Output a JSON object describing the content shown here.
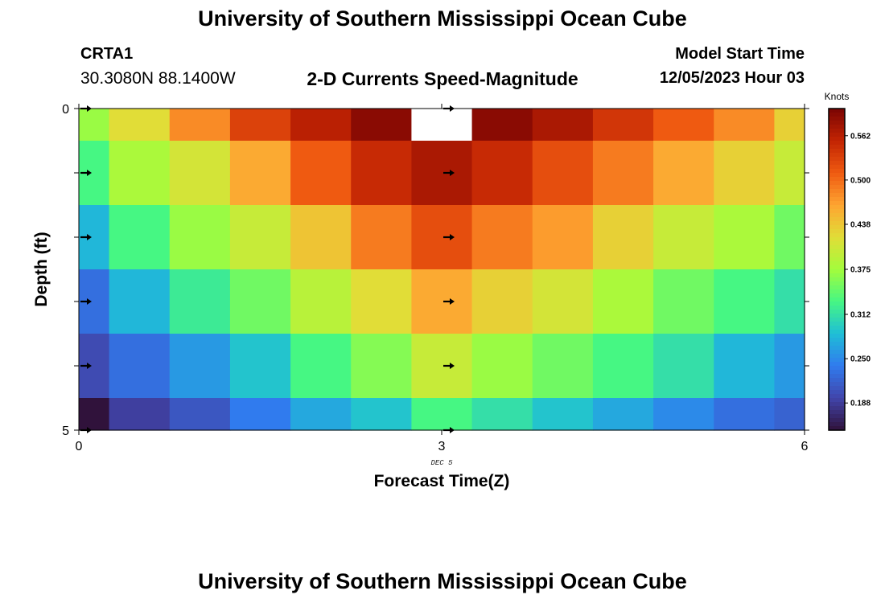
{
  "header": {
    "title": "University of Southern Mississippi Ocean Cube",
    "station_id": "CRTA1",
    "station_coords": "30.3080N  88.1400W",
    "subtitle": "2-D Currents Speed-Magnitude",
    "model_start_label": "Model Start Time",
    "model_start_value": "12/05/2023 Hour 03"
  },
  "footer": {
    "title": "University of Southern Mississippi Ocean Cube"
  },
  "chart_data": {
    "type": "heatmap",
    "title": "2-D Currents Speed-Magnitude",
    "xlabel": "Forecast Time(Z)",
    "ylabel": "Depth (ft)",
    "x_date_label": "DEC 5",
    "x_ticks": [
      "0",
      "3",
      "6"
    ],
    "y_ticks": [
      "0",
      "5"
    ],
    "xlim": [
      0,
      6
    ],
    "ylim": [
      0,
      5
    ],
    "colorbar": {
      "unit_label": "Knots",
      "ticks": [
        "0.562",
        "0.500",
        "0.438",
        "0.375",
        "0.312",
        "0.250",
        "0.188"
      ],
      "tick_values": [
        0.562,
        0.5,
        0.438,
        0.375,
        0.312,
        0.25,
        0.188
      ],
      "range": [
        0.15,
        0.6
      ]
    },
    "x_centers": [
      0.0,
      0.5,
      1.0,
      1.5,
      2.0,
      2.5,
      3.0,
      3.5,
      4.0,
      4.5,
      5.0,
      5.5,
      6.0
    ],
    "depth_centers": [
      0,
      1,
      2,
      3,
      4,
      5
    ],
    "values": [
      [
        0.37,
        0.42,
        0.48,
        0.53,
        0.56,
        0.59,
        null,
        0.59,
        0.57,
        0.54,
        0.51,
        0.48,
        0.43
      ],
      [
        0.33,
        0.38,
        0.41,
        0.46,
        0.51,
        0.55,
        0.57,
        0.55,
        0.52,
        0.49,
        0.46,
        0.43,
        0.4
      ],
      [
        0.28,
        0.33,
        0.37,
        0.4,
        0.44,
        0.49,
        0.52,
        0.49,
        0.47,
        0.43,
        0.4,
        0.38,
        0.35
      ],
      [
        0.23,
        0.28,
        0.32,
        0.35,
        0.39,
        0.42,
        0.46,
        0.43,
        0.41,
        0.38,
        0.35,
        0.33,
        0.31
      ],
      [
        0.2,
        0.23,
        0.26,
        0.29,
        0.33,
        0.36,
        0.4,
        0.37,
        0.35,
        0.33,
        0.31,
        0.28,
        0.26
      ],
      [
        0.15,
        0.19,
        0.21,
        0.24,
        0.27,
        0.29,
        0.33,
        0.31,
        0.29,
        0.27,
        0.25,
        0.23,
        0.22
      ]
    ],
    "missing_color": "#ffffff",
    "arrow_color": "#000000",
    "arrow_direction": "east",
    "arrows": [
      {
        "x": 0,
        "depth": 0
      },
      {
        "x": 0,
        "depth": 1
      },
      {
        "x": 0,
        "depth": 2
      },
      {
        "x": 0,
        "depth": 3
      },
      {
        "x": 0,
        "depth": 4
      },
      {
        "x": 0,
        "depth": 5
      },
      {
        "x": 3,
        "depth": 0
      },
      {
        "x": 3,
        "depth": 1
      },
      {
        "x": 3,
        "depth": 2
      },
      {
        "x": 3,
        "depth": 3
      },
      {
        "x": 3,
        "depth": 4
      },
      {
        "x": 3,
        "depth": 5
      }
    ]
  }
}
